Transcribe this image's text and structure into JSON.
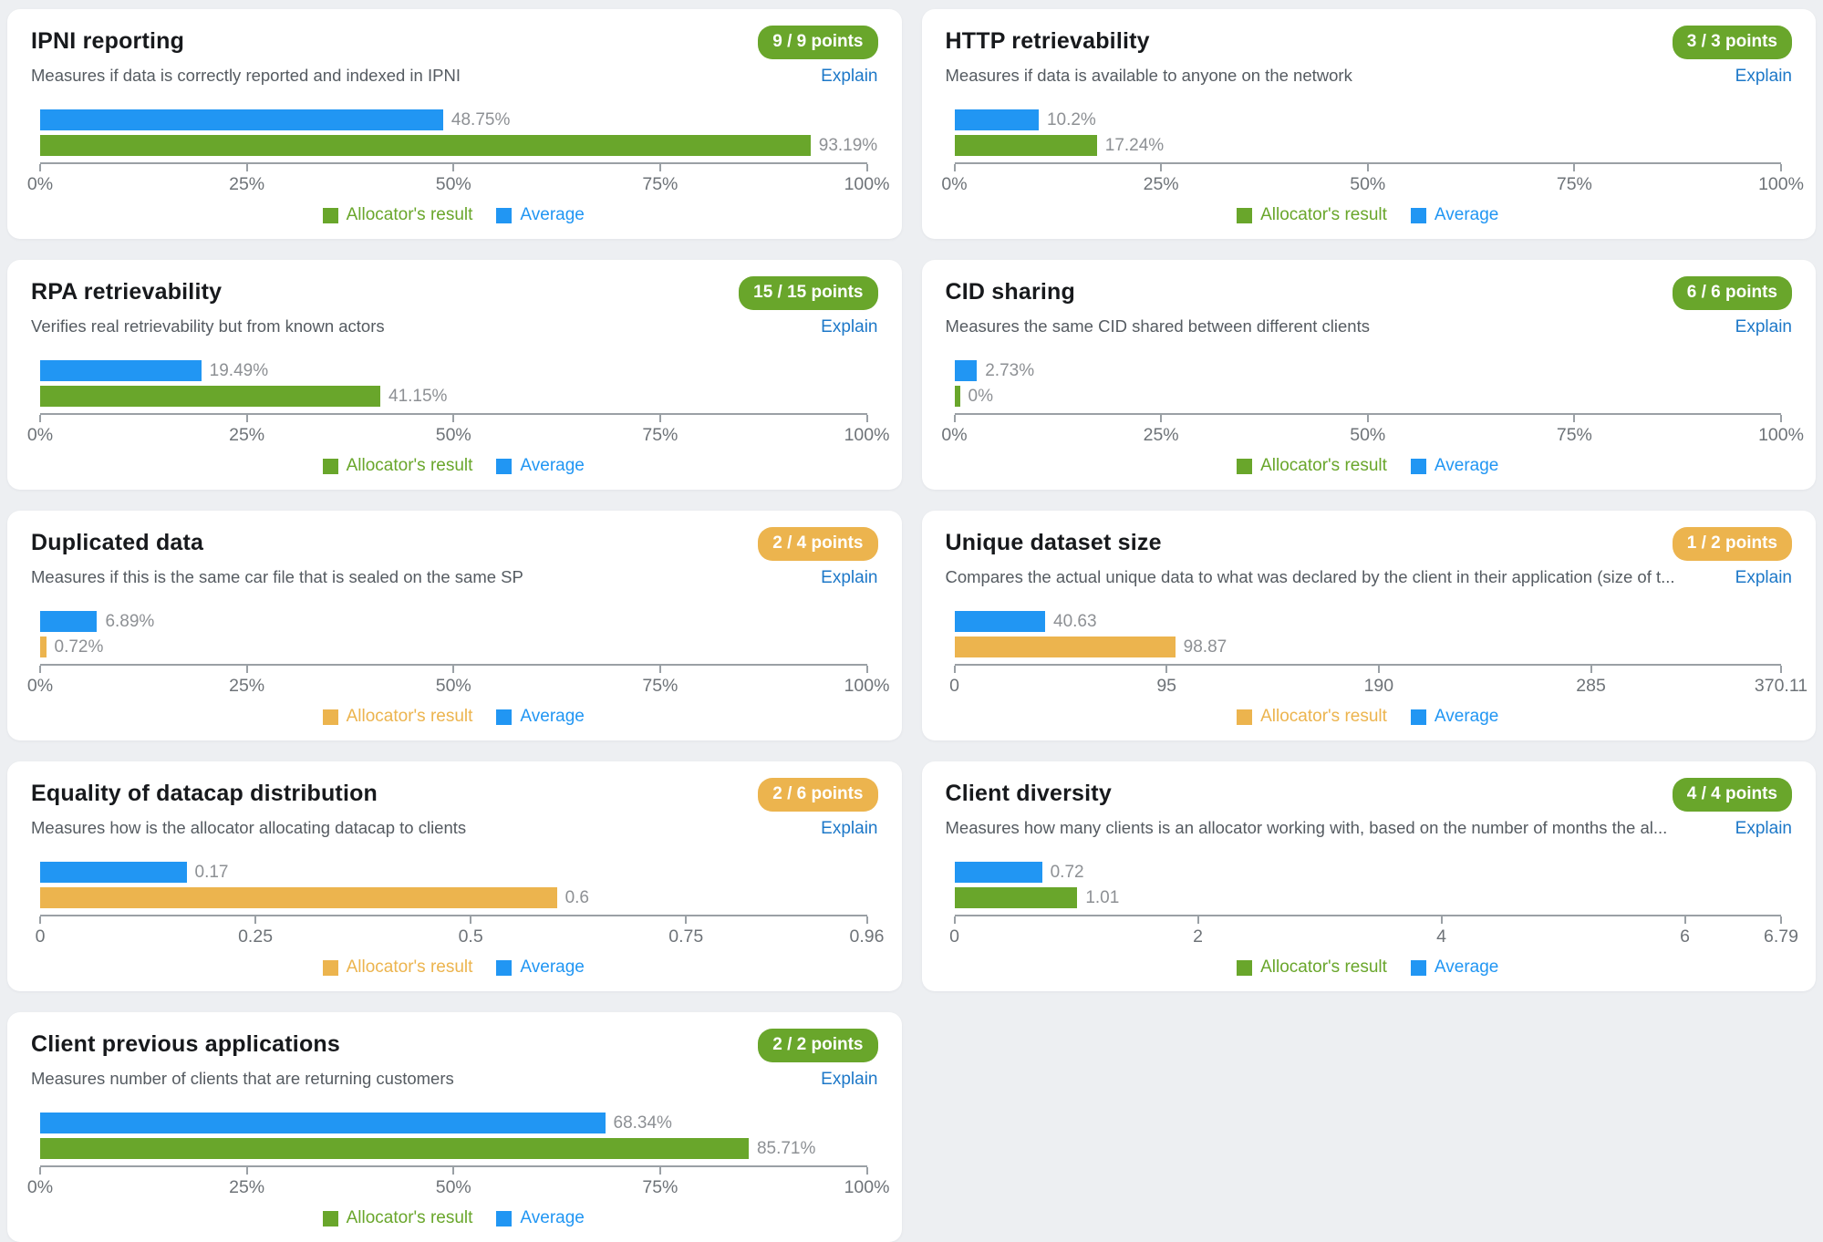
{
  "legend": {
    "allocator_label": "Allocator's result",
    "average_label": "Average"
  },
  "colors": {
    "average_blue": "#2196f3",
    "result_green": "#69a62b",
    "result_orange": "#ecb44e",
    "badge_green": "#69a62b",
    "badge_orange": "#ecb44e",
    "explain_blue": "#1d78c8"
  },
  "chart_data": [
    {
      "type": "bar",
      "title": "IPNI reporting",
      "description": "Measures if data is correctly reported and indexed in IPNI",
      "points_badge": "9 / 9 points",
      "badge_color": "green",
      "explain_label": "Explain",
      "xlim": [
        0,
        100
      ],
      "ticks": [
        {
          "label": "0%",
          "value": 0
        },
        {
          "label": "25%",
          "value": 25
        },
        {
          "label": "50%",
          "value": 50
        },
        {
          "label": "75%",
          "value": 75
        },
        {
          "label": "100%",
          "value": 100
        }
      ],
      "series": [
        {
          "name": "Average",
          "value": 48.75,
          "label": "48.75%",
          "color": "blue"
        },
        {
          "name": "Allocator's result",
          "value": 93.19,
          "label": "93.19%",
          "color": "green"
        }
      ],
      "legend_position": "bottom"
    },
    {
      "type": "bar",
      "title": "HTTP retrievability",
      "description": "Measures if data is available to anyone on the network",
      "points_badge": "3 / 3 points",
      "badge_color": "green",
      "explain_label": "Explain",
      "xlim": [
        0,
        100
      ],
      "ticks": [
        {
          "label": "0%",
          "value": 0
        },
        {
          "label": "25%",
          "value": 25
        },
        {
          "label": "50%",
          "value": 50
        },
        {
          "label": "75%",
          "value": 75
        },
        {
          "label": "100%",
          "value": 100
        }
      ],
      "series": [
        {
          "name": "Average",
          "value": 10.2,
          "label": "10.2%",
          "color": "blue"
        },
        {
          "name": "Allocator's result",
          "value": 17.24,
          "label": "17.24%",
          "color": "green"
        }
      ],
      "legend_position": "bottom"
    },
    {
      "type": "bar",
      "title": "RPA retrievability",
      "description": "Verifies real retrievability but from known actors",
      "points_badge": "15 / 15 points",
      "badge_color": "green",
      "explain_label": "Explain",
      "xlim": [
        0,
        100
      ],
      "ticks": [
        {
          "label": "0%",
          "value": 0
        },
        {
          "label": "25%",
          "value": 25
        },
        {
          "label": "50%",
          "value": 50
        },
        {
          "label": "75%",
          "value": 75
        },
        {
          "label": "100%",
          "value": 100
        }
      ],
      "series": [
        {
          "name": "Average",
          "value": 19.49,
          "label": "19.49%",
          "color": "blue"
        },
        {
          "name": "Allocator's result",
          "value": 41.15,
          "label": "41.15%",
          "color": "green"
        }
      ],
      "legend_position": "bottom"
    },
    {
      "type": "bar",
      "title": "CID sharing",
      "description": "Measures the same CID shared between different clients",
      "points_badge": "6 / 6 points",
      "badge_color": "green",
      "explain_label": "Explain",
      "xlim": [
        0,
        100
      ],
      "ticks": [
        {
          "label": "0%",
          "value": 0
        },
        {
          "label": "25%",
          "value": 25
        },
        {
          "label": "50%",
          "value": 50
        },
        {
          "label": "75%",
          "value": 75
        },
        {
          "label": "100%",
          "value": 100
        }
      ],
      "series": [
        {
          "name": "Average",
          "value": 2.73,
          "label": "2.73%",
          "color": "blue"
        },
        {
          "name": "Allocator's result",
          "value": 0,
          "label": "0%",
          "color": "green"
        }
      ],
      "legend_position": "bottom"
    },
    {
      "type": "bar",
      "title": "Duplicated data",
      "description": "Measures if this is the same car file that is sealed on the same SP",
      "points_badge": "2 / 4 points",
      "badge_color": "orange",
      "explain_label": "Explain",
      "xlim": [
        0,
        100
      ],
      "ticks": [
        {
          "label": "0%",
          "value": 0
        },
        {
          "label": "25%",
          "value": 25
        },
        {
          "label": "50%",
          "value": 50
        },
        {
          "label": "75%",
          "value": 75
        },
        {
          "label": "100%",
          "value": 100
        }
      ],
      "series": [
        {
          "name": "Average",
          "value": 6.89,
          "label": "6.89%",
          "color": "blue"
        },
        {
          "name": "Allocator's result",
          "value": 0.72,
          "label": "0.72%",
          "color": "orange"
        }
      ],
      "legend_position": "bottom"
    },
    {
      "type": "bar",
      "title": "Unique dataset size",
      "description": "Compares the actual unique data to what was declared by the client in their application (size of t...",
      "points_badge": "1 / 2 points",
      "badge_color": "orange",
      "explain_label": "Explain",
      "xlim": [
        0,
        370.11
      ],
      "ticks": [
        {
          "label": "0",
          "value": 0
        },
        {
          "label": "95",
          "value": 95
        },
        {
          "label": "190",
          "value": 190
        },
        {
          "label": "285",
          "value": 285
        },
        {
          "label": "370.11",
          "value": 370.11
        }
      ],
      "series": [
        {
          "name": "Average",
          "value": 40.63,
          "label": "40.63",
          "color": "blue"
        },
        {
          "name": "Allocator's result",
          "value": 98.87,
          "label": "98.87",
          "color": "orange"
        }
      ],
      "legend_position": "bottom"
    },
    {
      "type": "bar",
      "title": "Equality of datacap distribution",
      "description": "Measures how is the allocator allocating datacap to clients",
      "points_badge": "2 / 6 points",
      "badge_color": "orange",
      "explain_label": "Explain",
      "xlim": [
        0,
        0.96
      ],
      "ticks": [
        {
          "label": "0",
          "value": 0
        },
        {
          "label": "0.25",
          "value": 0.25
        },
        {
          "label": "0.5",
          "value": 0.5
        },
        {
          "label": "0.75",
          "value": 0.75
        },
        {
          "label": "0.96",
          "value": 0.96
        }
      ],
      "series": [
        {
          "name": "Average",
          "value": 0.17,
          "label": "0.17",
          "color": "blue"
        },
        {
          "name": "Allocator's result",
          "value": 0.6,
          "label": "0.6",
          "color": "orange"
        }
      ],
      "legend_position": "bottom"
    },
    {
      "type": "bar",
      "title": "Client diversity",
      "description": "Measures how many clients is an allocator working with, based on the number of months the al...",
      "points_badge": "4 / 4 points",
      "badge_color": "green",
      "explain_label": "Explain",
      "xlim": [
        0,
        6.79
      ],
      "ticks": [
        {
          "label": "0",
          "value": 0
        },
        {
          "label": "2",
          "value": 2
        },
        {
          "label": "4",
          "value": 4
        },
        {
          "label": "6",
          "value": 6
        },
        {
          "label": "6.79",
          "value": 6.79
        }
      ],
      "series": [
        {
          "name": "Average",
          "value": 0.72,
          "label": "0.72",
          "color": "blue"
        },
        {
          "name": "Allocator's result",
          "value": 1.01,
          "label": "1.01",
          "color": "green"
        }
      ],
      "legend_position": "bottom"
    },
    {
      "type": "bar",
      "title": "Client previous applications",
      "description": "Measures number of clients that are returning customers",
      "points_badge": "2 / 2 points",
      "badge_color": "green",
      "explain_label": "Explain",
      "xlim": [
        0,
        100
      ],
      "ticks": [
        {
          "label": "0%",
          "value": 0
        },
        {
          "label": "25%",
          "value": 25
        },
        {
          "label": "50%",
          "value": 50
        },
        {
          "label": "75%",
          "value": 75
        },
        {
          "label": "100%",
          "value": 100
        }
      ],
      "series": [
        {
          "name": "Average",
          "value": 68.34,
          "label": "68.34%",
          "color": "blue"
        },
        {
          "name": "Allocator's result",
          "value": 85.71,
          "label": "85.71%",
          "color": "green"
        }
      ],
      "legend_position": "bottom"
    }
  ]
}
